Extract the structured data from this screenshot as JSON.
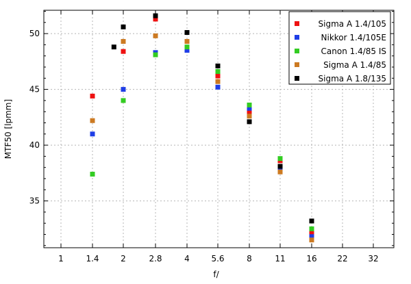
{
  "chart_data": {
    "type": "scatter",
    "xlabel": "f/",
    "ylabel": "MTF50 [lpmm]",
    "x_ticks": [
      "1",
      "1.4",
      "2",
      "2.8",
      "4",
      "5.6",
      "8",
      "11",
      "16",
      "22",
      "32"
    ],
    "y_ticks": [
      35,
      40,
      45,
      50
    ],
    "ylim": [
      31,
      52.5
    ],
    "grid": true,
    "legend_position": "top-right",
    "series": [
      {
        "name": "Sigma A 1.4/105",
        "color": "#ee1111",
        "points": [
          {
            "x": "1.4",
            "y": 44.4
          },
          {
            "x": "2",
            "y": 48.4
          },
          {
            "x": "2.8",
            "y": 51.3
          },
          {
            "x": "4",
            "y": 48.6
          },
          {
            "x": "5.6",
            "y": 46.2
          },
          {
            "x": "8",
            "y": 43.0
          },
          {
            "x": "11",
            "y": 38.6
          },
          {
            "x": "16",
            "y": 32.2
          }
        ]
      },
      {
        "name": "Nikkor 1.4/105E",
        "color": "#1f3ee6",
        "points": [
          {
            "x": "1.4",
            "y": 41.0
          },
          {
            "x": "2",
            "y": 45.0
          },
          {
            "x": "2.8",
            "y": 48.3
          },
          {
            "x": "4",
            "y": 48.5
          },
          {
            "x": "5.6",
            "y": 45.2
          },
          {
            "x": "8",
            "y": 43.3
          },
          {
            "x": "11",
            "y": 37.8
          },
          {
            "x": "16",
            "y": 31.8
          }
        ]
      },
      {
        "name": "Canon 1.4/85 IS",
        "color": "#33cc22",
        "points": [
          {
            "x": "1.4",
            "y": 37.4
          },
          {
            "x": "2",
            "y": 44.0
          },
          {
            "x": "2.8",
            "y": 48.1
          },
          {
            "x": "4",
            "y": 48.8
          },
          {
            "x": "5.6",
            "y": 46.6
          },
          {
            "x": "8",
            "y": 43.6
          },
          {
            "x": "11",
            "y": 38.8
          },
          {
            "x": "16",
            "y": 32.5
          }
        ]
      },
      {
        "name": "Sigma A 1.4/85",
        "color": "#cc7a22",
        "points": [
          {
            "x": "1.4",
            "y": 42.2
          },
          {
            "x": "2",
            "y": 49.3
          },
          {
            "x": "2.8",
            "y": 49.8
          },
          {
            "x": "4",
            "y": 49.3
          },
          {
            "x": "5.6",
            "y": 45.7
          },
          {
            "x": "8",
            "y": 42.6
          },
          {
            "x": "11",
            "y": 37.6
          },
          {
            "x": "16",
            "y": 31.5
          }
        ]
      },
      {
        "name": "Sigma A 1.8/135",
        "color": "#000000",
        "points": [
          {
            "x": "1.8",
            "y": 48.8
          },
          {
            "x": "2",
            "y": 50.6
          },
          {
            "x": "2.8",
            "y": 51.6
          },
          {
            "x": "4",
            "y": 50.1
          },
          {
            "x": "5.6",
            "y": 47.1
          },
          {
            "x": "8",
            "y": 42.1
          },
          {
            "x": "11",
            "y": 38.1
          },
          {
            "x": "16",
            "y": 33.2
          }
        ]
      }
    ]
  }
}
